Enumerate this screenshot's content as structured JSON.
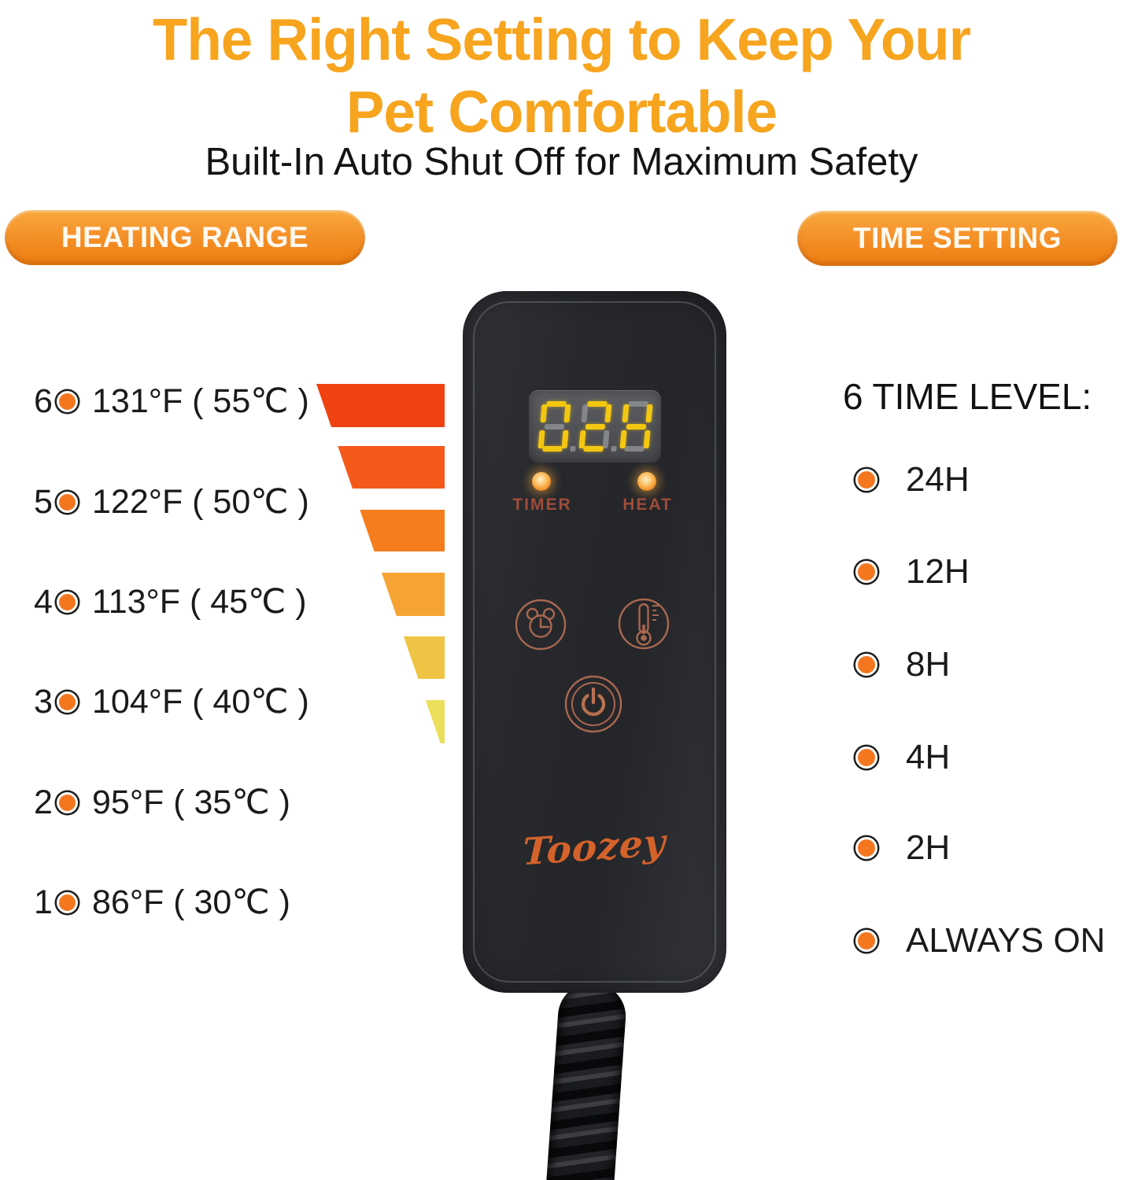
{
  "title": {
    "line1": "The Right Setting to Keep Your",
    "line2": "Pet Comfortable"
  },
  "subtitle": "Built-In Auto Shut Off for Maximum Safety",
  "heating": {
    "badge": "HEATING RANGE",
    "levels": [
      {
        "level": "6",
        "temp": "131°F ( 55℃ )"
      },
      {
        "level": "5",
        "temp": "122°F ( 50℃ )"
      },
      {
        "level": "4",
        "temp": "113°F ( 45℃ )"
      },
      {
        "level": "3",
        "temp": "104°F ( 40℃ )"
      },
      {
        "level": "2",
        "temp": "95°F ( 35℃ )"
      },
      {
        "level": "1",
        "temp": "86°F ( 30℃ )"
      }
    ],
    "scale_colors": [
      "#EF4210",
      "#F4591A",
      "#F57D1E",
      "#F5A433",
      "#EFC444",
      "#ECDF5C"
    ]
  },
  "time": {
    "badge": "TIME SETTING",
    "heading": "6 TIME LEVEL:",
    "options": [
      "24H",
      "12H",
      "8H",
      "4H",
      "2H",
      "ALWAYS ON"
    ]
  },
  "controller": {
    "display": "02H",
    "leds": [
      {
        "label": "TIMER"
      },
      {
        "label": "HEAT"
      }
    ],
    "brand": "Toozey"
  },
  "colors": {
    "accent_orange": "#F7A41E",
    "badge_gradient_top": "#F8A93E",
    "badge_gradient_bottom": "#EC7D10",
    "bullet_orange": "#F4771F",
    "display_lit": "#F3C711",
    "display_unlit": "#8A8C90",
    "button_outline": "#A96750",
    "logo_orange": "#D4622B"
  }
}
